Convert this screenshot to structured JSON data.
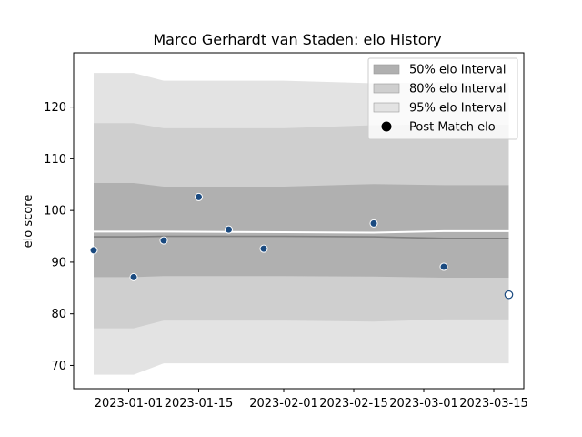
{
  "chart_data": {
    "type": "line",
    "title": "Marco Gerhardt van Staden: elo History",
    "xlabel": "",
    "ylabel": "elo score",
    "ylim": [
      65.5,
      130.5
    ],
    "xlim": [
      "2022-12-21",
      "2023-03-21"
    ],
    "yticks": [
      70,
      80,
      90,
      100,
      110,
      120
    ],
    "xticks": [
      "2023-01-01",
      "2023-01-15",
      "2023-02-01",
      "2023-02-15",
      "2023-03-01",
      "2023-03-15"
    ],
    "grid": false,
    "legend_position": "top-right",
    "legend": [
      "50% elo Interval",
      "80% elo Interval",
      "95% elo Interval",
      "Post Match elo"
    ],
    "bands": {
      "x": [
        "2022-12-25",
        "2023-01-02",
        "2023-01-08",
        "2023-02-01",
        "2023-02-19",
        "2023-03-05",
        "2023-03-18"
      ],
      "median": [
        94.9,
        94.9,
        95.0,
        95.0,
        94.9,
        94.6,
        94.6
      ],
      "mean": [
        95.9,
        95.9,
        95.9,
        95.8,
        95.7,
        96.0,
        96.0
      ],
      "p50": {
        "low": [
          87.1,
          87.1,
          87.3,
          87.3,
          87.2,
          87.0,
          87.0
        ],
        "high": [
          105.3,
          105.3,
          104.6,
          104.6,
          105.1,
          104.9,
          104.9
        ]
      },
      "p80": {
        "low": [
          77.2,
          77.2,
          78.7,
          78.7,
          78.5,
          78.9,
          78.9
        ],
        "high": [
          116.9,
          116.9,
          115.9,
          115.9,
          116.5,
          116.6,
          116.6
        ]
      },
      "p95": {
        "low": [
          68.2,
          68.2,
          70.4,
          70.4,
          70.4,
          70.4,
          70.4
        ],
        "high": [
          126.6,
          126.6,
          125.1,
          125.1,
          124.6,
          124.8,
          124.8
        ]
      }
    },
    "points": [
      {
        "x": "2022-12-25",
        "y": 92.3
      },
      {
        "x": "2023-01-02",
        "y": 87.1
      },
      {
        "x": "2023-01-08",
        "y": 94.2
      },
      {
        "x": "2023-01-15",
        "y": 102.6
      },
      {
        "x": "2023-01-21",
        "y": 96.3
      },
      {
        "x": "2023-01-28",
        "y": 92.6
      },
      {
        "x": "2023-02-19",
        "y": 97.5
      },
      {
        "x": "2023-03-05",
        "y": 89.1
      },
      {
        "x": "2023-03-18",
        "y": 83.7,
        "latest": true
      }
    ],
    "colors": {
      "p50": "#b0b0b0",
      "p80": "#cfcfcf",
      "p95": "#e3e3e3",
      "median": "#808080",
      "mean": "#ffffff",
      "point": "#1a4a80",
      "point_edge": "#ffffff",
      "latest_point_fill": "#ffffff",
      "latest_point_edge": "#1a4a80"
    }
  }
}
